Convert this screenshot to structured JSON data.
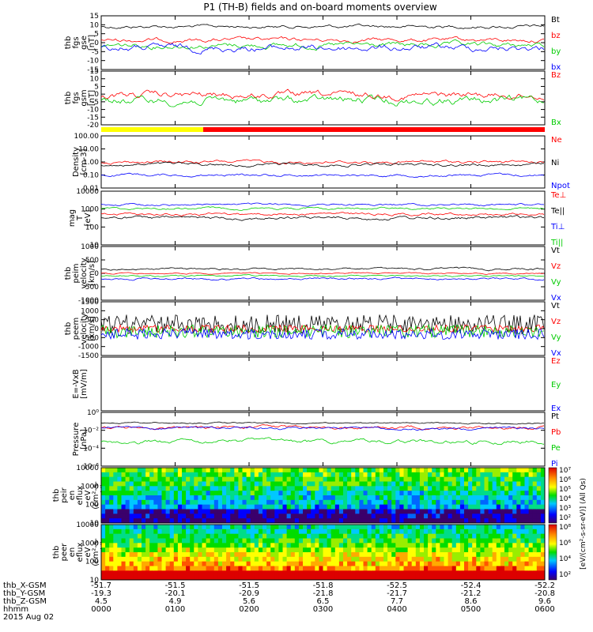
{
  "title": "P1 (TH-B) fields and on-board moments overview",
  "colors": {
    "black": "#000000",
    "red": "#ff0000",
    "green": "#00cc00",
    "blue": "#0000ff",
    "yellow": "#ffff00"
  },
  "chart_data": [
    {
      "type": "line",
      "id": "fgs-gse",
      "ylabel": [
        "thb",
        "fgs",
        "gse",
        "[nT]"
      ],
      "ylim": [
        -15,
        15
      ],
      "yticks": [
        "15",
        "10",
        "5",
        "0",
        "-5",
        "-10",
        "-15"
      ],
      "series": [
        {
          "name": "Bt",
          "color": "#000000"
        },
        {
          "name": "bz",
          "color": "#ff0000"
        },
        {
          "name": "by",
          "color": "#00cc00"
        },
        {
          "name": "bx",
          "color": "#0000ff"
        }
      ]
    },
    {
      "type": "line",
      "id": "fgs-gsm",
      "ylabel": [
        "thb",
        "fgs",
        "gsm",
        "[nT]"
      ],
      "ylim": [
        -20,
        15
      ],
      "yticks": [
        "15",
        "10",
        "5",
        "0",
        "-5",
        "-10",
        "-15",
        "-20"
      ],
      "series": [
        {
          "name": "Bz",
          "color": "#ff0000"
        },
        {
          "name": "Bx",
          "color": "#00cc00"
        }
      ]
    },
    {
      "type": "line",
      "id": "density",
      "ylabel": [
        "Density",
        "[cm-3]"
      ],
      "log": true,
      "ylim": [
        0.01,
        100
      ],
      "yticks": [
        "100.00",
        "10.00",
        "1.00",
        "0.10",
        "0.01"
      ],
      "series": [
        {
          "name": "Ne",
          "color": "#ff0000"
        },
        {
          "name": "Ni",
          "color": "#000000"
        },
        {
          "name": "Npot",
          "color": "#0000ff"
        }
      ]
    },
    {
      "type": "line",
      "id": "temperature",
      "ylabel": [
        "mag",
        "T",
        "[eV]"
      ],
      "log": true,
      "ylim": [
        10,
        10000
      ],
      "yticks": [
        "10000",
        "1000",
        "100",
        "10"
      ],
      "series": [
        {
          "name": "Te⊥",
          "color": "#ff0000"
        },
        {
          "name": "Te||",
          "color": "#000000"
        },
        {
          "name": "Ti⊥",
          "color": "#0000ff"
        },
        {
          "name": "Ti||",
          "color": "#00cc00"
        }
      ]
    },
    {
      "type": "line",
      "id": "peim-velocity",
      "ylabel": [
        "thb",
        "peim",
        "velocity",
        "[km/s]"
      ],
      "ylim": [
        -1000,
        1000
      ],
      "yticks": [
        "1000",
        "500",
        "0",
        "-500",
        "-1000"
      ],
      "series": [
        {
          "name": "Vt",
          "color": "#000000"
        },
        {
          "name": "Vz",
          "color": "#ff0000"
        },
        {
          "name": "Vy",
          "color": "#00cc00"
        },
        {
          "name": "Vx",
          "color": "#0000ff"
        }
      ]
    },
    {
      "type": "line",
      "id": "peem-velocity",
      "ylabel": [
        "thb",
        "peem",
        "velocity",
        "[km/s]"
      ],
      "ylim": [
        -1500,
        1500
      ],
      "yticks": [
        "1500",
        "1000",
        "500",
        "0",
        "-500",
        "-1000",
        "-1500"
      ],
      "series": [
        {
          "name": "Vt",
          "color": "#000000"
        },
        {
          "name": "Vz",
          "color": "#ff0000"
        },
        {
          "name": "Vy",
          "color": "#00cc00"
        },
        {
          "name": "Vx",
          "color": "#0000ff"
        }
      ]
    },
    {
      "type": "line",
      "id": "efield",
      "ylabel": [
        "E=-VxB",
        "[mV/m]"
      ],
      "ylim": [
        null,
        null
      ],
      "yticks": [],
      "series": [
        {
          "name": "Ez",
          "color": "#ff0000"
        },
        {
          "name": "Ey",
          "color": "#00cc00"
        },
        {
          "name": "Ex",
          "color": "#0000ff"
        }
      ]
    },
    {
      "type": "line",
      "id": "pressure",
      "ylabel": [
        "Pressure",
        "[nPa]"
      ],
      "log": true,
      "ylim": [
        1e-06,
        1
      ],
      "yticks": [
        "10⁰",
        "10⁻²",
        "10⁻⁴",
        "10⁻⁶"
      ],
      "series": [
        {
          "name": "Pt",
          "color": "#000000"
        },
        {
          "name": "Pb",
          "color": "#ff0000"
        },
        {
          "name": "Pe",
          "color": "#00cc00"
        },
        {
          "name": "Pi",
          "color": "#0000ff"
        }
      ]
    },
    {
      "type": "heatmap",
      "id": "peir-spectrogram",
      "ylabel": [
        "thb",
        "peir",
        "en",
        "eflux",
        "eV",
        "(cm²-s-",
        "sr-eV)"
      ],
      "log": true,
      "ylim": [
        10,
        10000
      ],
      "yticks": [
        "10000",
        "1000",
        "100",
        "10"
      ],
      "colorbar": {
        "ticks": [
          "10⁷",
          "10⁶",
          "10⁵",
          "10⁴",
          "10³",
          "10²"
        ]
      }
    },
    {
      "type": "heatmap",
      "id": "peer-spectrogram",
      "ylabel": [
        "thb",
        "peer",
        "en",
        "eflux",
        "eV",
        "(cm²-s-",
        "sr-eV)"
      ],
      "log": true,
      "ylim": [
        10,
        10000
      ],
      "yticks": [
        "10000",
        "1000",
        "100",
        "10"
      ],
      "colorbar": {
        "ticks": [
          "10⁸",
          "10⁶",
          "10⁴",
          "10²"
        ]
      }
    }
  ],
  "mode_bar": {
    "yellow_fraction": 0.23
  },
  "colorbar_label": "[eV/(cm²-s-sr-eV)] (All Qs)",
  "x_axis": {
    "rows": [
      {
        "label": "thb_X-GSM",
        "values": [
          "-51.7",
          "-51.5",
          "-51.5",
          "-51.8",
          "-52.5",
          "-52.4",
          "-52.2"
        ]
      },
      {
        "label": "thb_Y-GSM",
        "values": [
          "-19.3",
          "-20.1",
          "-20.9",
          "-21.8",
          "-21.7",
          "-21.2",
          "-20.8"
        ]
      },
      {
        "label": "thb_Z-GSM",
        "values": [
          "4.5",
          "4.9",
          "5.6",
          "6.5",
          "7.7",
          "8.6",
          "9.6"
        ]
      },
      {
        "label": "hhmm",
        "values": [
          "0000",
          "0100",
          "0200",
          "0300",
          "0400",
          "0500",
          "0600"
        ]
      }
    ],
    "date": "2015 Aug 02"
  }
}
